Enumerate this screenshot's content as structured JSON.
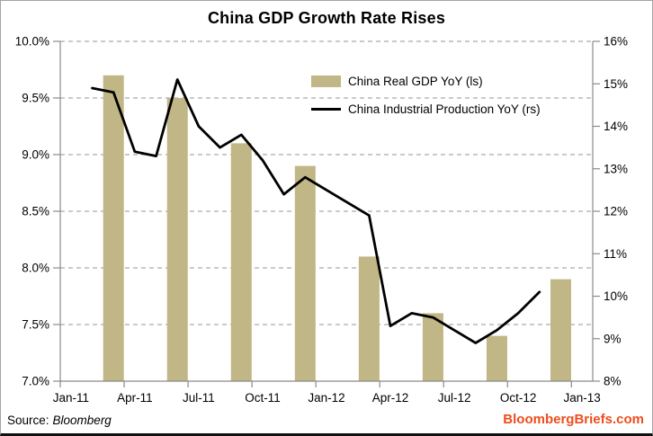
{
  "header": {
    "title": "China GDP Growth Rate Rises"
  },
  "legend": [
    {
      "label": "China Real GDP YoY (ls)",
      "marker": "bar-swatch"
    },
    {
      "label": "China Industrial Production YoY (rs)",
      "marker": "line-swatch"
    }
  ],
  "footer": {
    "source_prefix": "Source:",
    "source_name": "Bloomberg",
    "branding": "BloombergBriefs.com"
  },
  "colors": {
    "bar": "#c1b685",
    "line": "#000000",
    "grid": "#ababab",
    "axis": "#8a8a8a",
    "branding": "#ee4d1c",
    "frame_border": "#a3a3a3",
    "text": "#000000"
  },
  "chart_data": {
    "type": "bar",
    "subtype": "bar+line combo, dual y-axes",
    "title": "China GDP Growth Rate Rises",
    "grid": "horizontal dashed at left-axis ticks",
    "legend_position": "inside top-right",
    "x_axis": {
      "unit": "month",
      "start": "Jan-11",
      "end": "Jan-13",
      "n_months": 25,
      "ticks": [
        {
          "label": "Jan-11",
          "month": 0
        },
        {
          "label": "Apr-11",
          "month": 3
        },
        {
          "label": "Jul-11",
          "month": 6
        },
        {
          "label": "Oct-11",
          "month": 9
        },
        {
          "label": "Jan-12",
          "month": 12
        },
        {
          "label": "Apr-12",
          "month": 15
        },
        {
          "label": "Jul-12",
          "month": 18
        },
        {
          "label": "Oct-12",
          "month": 21
        },
        {
          "label": "Jan-13",
          "month": 24
        }
      ]
    },
    "left_axis": {
      "series": "China Real GDP YoY (ls)",
      "min": 7.0,
      "max": 10.0,
      "ticks": [
        {
          "label": "10.0%",
          "value": 10.0
        },
        {
          "label": "9.5%",
          "value": 9.5
        },
        {
          "label": "9.0%",
          "value": 9.0
        },
        {
          "label": "8.5%",
          "value": 8.5
        },
        {
          "label": "8.0%",
          "value": 8.0
        },
        {
          "label": "7.5%",
          "value": 7.5
        },
        {
          "label": "7.0%",
          "value": 7.0
        }
      ]
    },
    "right_axis": {
      "series": "China Industrial Production YoY (rs)",
      "min": 8,
      "max": 16,
      "ticks": [
        {
          "label": "16%",
          "value": 16
        },
        {
          "label": "15%",
          "value": 15
        },
        {
          "label": "14%",
          "value": 14
        },
        {
          "label": "13%",
          "value": 13
        },
        {
          "label": "12%",
          "value": 12
        },
        {
          "label": "11%",
          "value": 11
        },
        {
          "label": "10%",
          "value": 10
        },
        {
          "label": "9%",
          "value": 9
        },
        {
          "label": "8%",
          "value": 8
        }
      ]
    },
    "series": [
      {
        "name": "China Real GDP YoY (ls)",
        "type": "bar",
        "axis": "left",
        "points": [
          {
            "m": 2,
            "month": "Mar-11",
            "value": 9.7
          },
          {
            "m": 5,
            "month": "Jun-11",
            "value": 9.5
          },
          {
            "m": 8,
            "month": "Sep-11",
            "value": 9.1
          },
          {
            "m": 11,
            "month": "Dec-11",
            "value": 8.9
          },
          {
            "m": 14,
            "month": "Mar-12",
            "value": 8.1
          },
          {
            "m": 17,
            "month": "Jun-12",
            "value": 7.6
          },
          {
            "m": 20,
            "month": "Sep-12",
            "value": 7.4
          },
          {
            "m": 23,
            "month": "Dec-12",
            "value": 7.9
          }
        ]
      },
      {
        "name": "China Industrial Production YoY (rs)",
        "type": "line",
        "axis": "right",
        "points": [
          {
            "m": 1,
            "month": "Feb-11",
            "value": 14.9
          },
          {
            "m": 2,
            "month": "Mar-11",
            "value": 14.8
          },
          {
            "m": 3,
            "month": "Apr-11",
            "value": 13.4
          },
          {
            "m": 4,
            "month": "May-11",
            "value": 13.3
          },
          {
            "m": 5,
            "month": "Jun-11",
            "value": 15.1
          },
          {
            "m": 6,
            "month": "Jul-11",
            "value": 14.0
          },
          {
            "m": 7,
            "month": "Aug-11",
            "value": 13.5
          },
          {
            "m": 8,
            "month": "Sep-11",
            "value": 13.8
          },
          {
            "m": 9,
            "month": "Oct-11",
            "value": 13.2
          },
          {
            "m": 10,
            "month": "Nov-11",
            "value": 12.4
          },
          {
            "m": 11,
            "month": "Dec-11",
            "value": 12.8
          },
          {
            "m": 14,
            "month": "Mar-12",
            "value": 11.9
          },
          {
            "m": 15,
            "month": "Apr-12",
            "value": 9.3
          },
          {
            "m": 16,
            "month": "May-12",
            "value": 9.6
          },
          {
            "m": 17,
            "month": "Jun-12",
            "value": 9.5
          },
          {
            "m": 18,
            "month": "Jul-12",
            "value": 9.2
          },
          {
            "m": 19,
            "month": "Aug-12",
            "value": 8.9
          },
          {
            "m": 20,
            "month": "Sep-12",
            "value": 9.2
          },
          {
            "m": 21,
            "month": "Oct-12",
            "value": 9.6
          },
          {
            "m": 22,
            "month": "Nov-12",
            "value": 10.1
          }
        ]
      }
    ]
  }
}
